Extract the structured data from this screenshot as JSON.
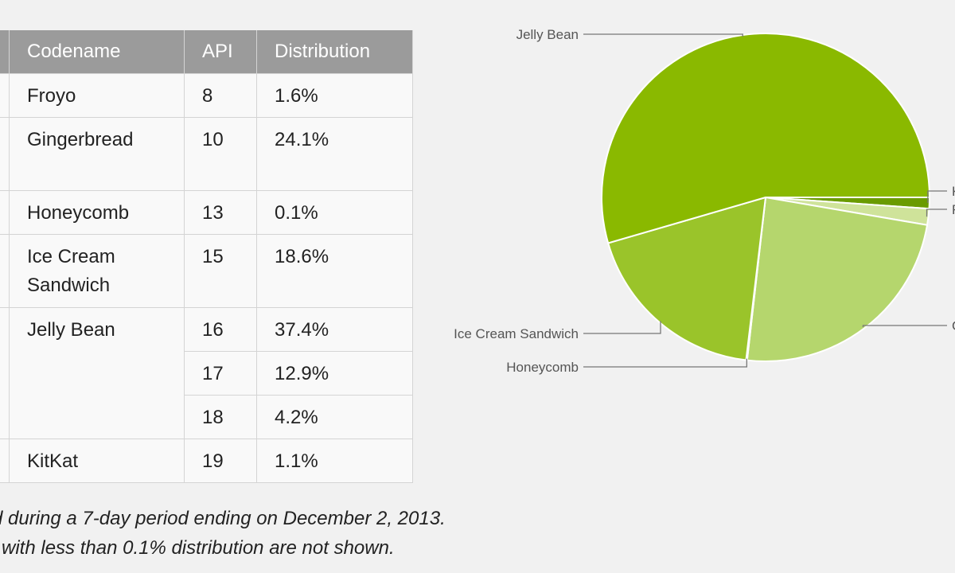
{
  "table": {
    "headers": [
      "Codename",
      "API",
      "Distribution"
    ],
    "rows": [
      {
        "codename": "Froyo",
        "api": "8",
        "dist": "1.6%"
      },
      {
        "codename": "Gingerbread",
        "api": "10",
        "dist": "24.1%"
      },
      {
        "codename": "Honeycomb",
        "api": "13",
        "dist": "0.1%"
      },
      {
        "codename": "Ice Cream Sandwich",
        "api": "15",
        "dist": "18.6%"
      },
      {
        "codename": "Jelly Bean",
        "api": "16",
        "dist": "37.4%"
      },
      {
        "codename": "",
        "api": "17",
        "dist": "12.9%"
      },
      {
        "codename": "",
        "api": "18",
        "dist": "4.2%"
      },
      {
        "codename": "KitKat",
        "api": "19",
        "dist": "1.1%"
      }
    ]
  },
  "notes": {
    "line1": "ted during a 7-day period ending on December 2, 2013.",
    "line2": "ns with less than 0.1% distribution are not shown."
  },
  "chart_data": {
    "type": "pie",
    "title": "",
    "slices": [
      {
        "label": "KitKat",
        "value": 1.1,
        "display": "K",
        "color": "#6a9b00"
      },
      {
        "label": "Froyo",
        "value": 1.6,
        "display": "F",
        "color": "#cfe39a"
      },
      {
        "label": "Gingerbread",
        "value": 24.1,
        "display": "G",
        "color": "#b5d66d"
      },
      {
        "label": "Honeycomb",
        "value": 0.1,
        "display": "Honeycomb",
        "color": "#a6cd3e"
      },
      {
        "label": "Ice Cream Sandwich",
        "value": 18.6,
        "display": "Ice Cream Sandwich",
        "color": "#9ac42a"
      },
      {
        "label": "Jelly Bean",
        "value": 54.5,
        "display": "Jelly Bean",
        "color": "#8ab900"
      }
    ]
  }
}
